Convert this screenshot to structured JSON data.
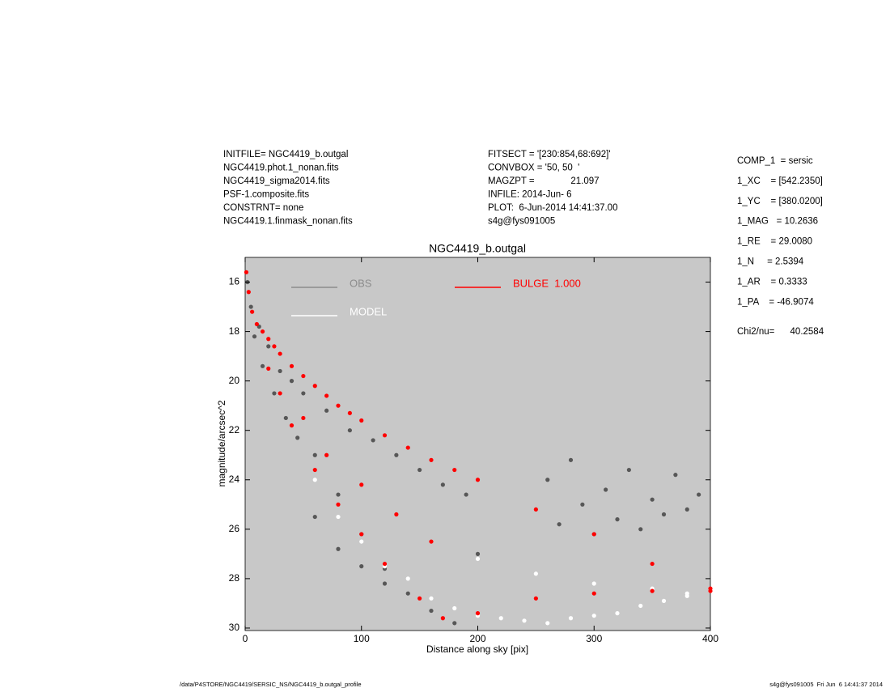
{
  "header": {
    "files": [
      "INITFILE= NGC4419_b.outgal",
      "NGC4419.phot.1_nonan.fits",
      "NGC4419_sigma2014.fits",
      "PSF-1.composite.fits",
      "CONSTRNT= none",
      "NGC4419.1.finmask_nonan.fits"
    ],
    "settings": [
      "FITSECT = '[230:854,68:692]'",
      "CONVBOX = '50, 50  '",
      "MAGZPT =              21.097",
      "INFILE: 2014-Jun- 6",
      "PLOT:  6-Jun-2014 14:41:37.00",
      "s4g@fys091005"
    ],
    "parameters": [
      "COMP_1  = sersic",
      "1_XC    = [542.2350]",
      "1_YC    = [380.0200]",
      "1_MAG   = 10.2636",
      "1_RE    = 29.0080",
      "1_N     = 2.5394",
      "1_AR    = 0.3333",
      "1_PA    = -46.9074"
    ],
    "chi2": "Chi2/nu=      40.2584"
  },
  "footer": {
    "path": "/data/P4STORE/NGC4419/SERSIC_NS/NGC4419_b.outgal_profile",
    "stamp": "s4g@fys091005  Fri Jun  6 14:41:37 2014"
  },
  "chart_data": {
    "type": "scatter",
    "title": "NGC4419_b.outgal",
    "x_label": "Distance along sky [pix]",
    "y_label": "magnitude/arcsec^2",
    "xlim": [
      0,
      400
    ],
    "xticks": [
      0,
      100,
      200,
      300,
      400
    ],
    "ylim": [
      15,
      30.1
    ],
    "yticks": [
      16,
      18,
      20,
      22,
      24,
      26,
      28,
      30
    ],
    "y_inverted": true,
    "background": "#c8c8c8",
    "legend": "upper left",
    "series": [
      {
        "name": "OBS",
        "color": "#575757",
        "legend_color": "#8c8c8c",
        "x": [
          2,
          5,
          8,
          12,
          15,
          20,
          25,
          30,
          35,
          40,
          45,
          50,
          60,
          70,
          80,
          90,
          100,
          110,
          120,
          130,
          140,
          150,
          160,
          170,
          180,
          190,
          200,
          260,
          270,
          280,
          290,
          300,
          310,
          320,
          330,
          340,
          350,
          360,
          370,
          380,
          390,
          60,
          80,
          100,
          120
        ],
        "values": [
          16.0,
          17.0,
          18.2,
          17.8,
          19.4,
          18.6,
          20.5,
          19.6,
          21.5,
          20.0,
          22.3,
          20.5,
          23.0,
          21.2,
          24.6,
          22.0,
          26.2,
          22.4,
          27.6,
          23.0,
          28.6,
          23.6,
          29.3,
          24.2,
          29.8,
          24.6,
          27.0,
          24.0,
          25.8,
          23.2,
          25.0,
          26.2,
          24.4,
          25.6,
          23.6,
          26.0,
          24.8,
          25.4,
          23.8,
          25.2,
          24.6,
          25.5,
          26.8,
          27.5,
          28.2
        ]
      },
      {
        "name": "MODEL",
        "color": "#ffffff",
        "x": [
          60,
          80,
          100,
          120,
          140,
          160,
          180,
          200,
          220,
          240,
          260,
          280,
          300,
          320,
          340,
          360,
          380,
          400,
          200,
          250,
          300,
          350,
          380
        ],
        "values": [
          24.0,
          25.5,
          26.5,
          27.5,
          28.0,
          28.8,
          29.2,
          29.5,
          29.6,
          29.7,
          29.8,
          29.6,
          29.5,
          29.4,
          29.1,
          28.9,
          28.7,
          28.5,
          27.2,
          27.8,
          28.2,
          28.4,
          28.6
        ]
      },
      {
        "name": "BULGE  1.000",
        "color": "#ff0000",
        "x": [
          1,
          3,
          6,
          10,
          15,
          20,
          25,
          30,
          40,
          50,
          60,
          70,
          80,
          90,
          100,
          120,
          140,
          160,
          180,
          200,
          250,
          300,
          350,
          400,
          20,
          40,
          60,
          80,
          100,
          120,
          150,
          170,
          200,
          250,
          300,
          350,
          400,
          30,
          50,
          70,
          100,
          130,
          160
        ],
        "values": [
          15.6,
          16.4,
          17.2,
          17.7,
          18.0,
          18.3,
          18.6,
          18.9,
          19.4,
          19.8,
          20.2,
          20.6,
          21.0,
          21.3,
          21.6,
          22.2,
          22.7,
          23.2,
          23.6,
          24.0,
          25.2,
          26.2,
          27.4,
          28.4,
          19.5,
          21.8,
          23.6,
          25.0,
          26.2,
          27.4,
          28.8,
          29.6,
          29.4,
          28.8,
          28.6,
          28.5,
          28.5,
          20.5,
          21.5,
          23.0,
          24.2,
          25.4,
          26.5
        ]
      }
    ]
  }
}
